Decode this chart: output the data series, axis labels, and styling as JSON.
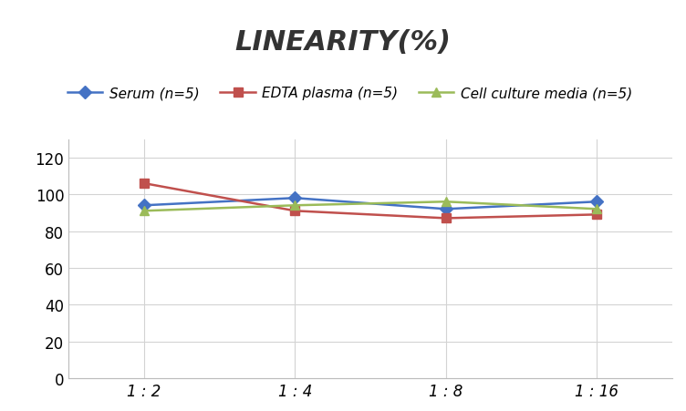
{
  "title": "LINEARITY(%)",
  "x_labels": [
    "1 : 2",
    "1 : 4",
    "1 : 8",
    "1 : 16"
  ],
  "x_positions": [
    0,
    1,
    2,
    3
  ],
  "series": [
    {
      "label": "Serum (n=5)",
      "color": "#4472C4",
      "marker": "D",
      "values": [
        94,
        98,
        92,
        96
      ]
    },
    {
      "label": "EDTA plasma (n=5)",
      "color": "#C0504D",
      "marker": "s",
      "values": [
        106,
        91,
        87,
        89
      ]
    },
    {
      "label": "Cell culture media (n=5)",
      "color": "#9BBB59",
      "marker": "^",
      "values": [
        91,
        94,
        96,
        92
      ]
    }
  ],
  "ylim": [
    0,
    130
  ],
  "yticks": [
    0,
    20,
    40,
    60,
    80,
    100,
    120
  ],
  "background_color": "#ffffff",
  "grid_color": "#d3d3d3",
  "title_fontsize": 22,
  "legend_fontsize": 11,
  "tick_fontsize": 12
}
